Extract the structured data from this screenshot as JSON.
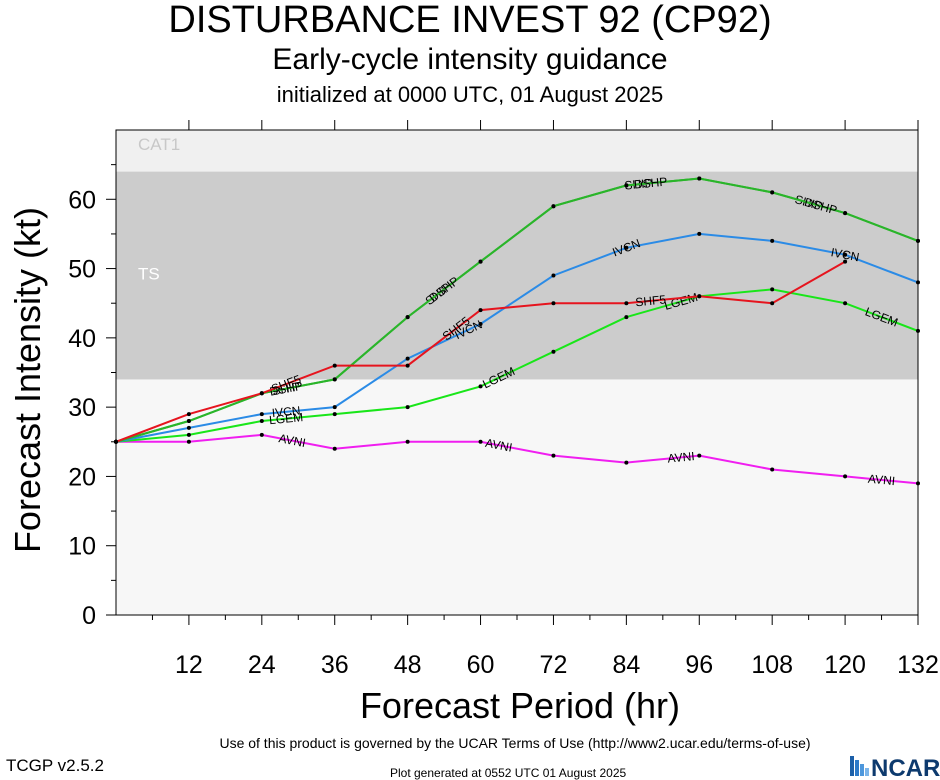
{
  "header": {
    "title": "DISTURBANCE INVEST 92 (CP92)",
    "subtitle": "Early-cycle intensity guidance",
    "init": "initialized at 0000 UTC, 01 August 2025"
  },
  "footer": {
    "terms": "Use of this product is governed by the UCAR Terms of Use (http://www2.ucar.edu/terms-of-use)",
    "version": "TCGP v2.5.2",
    "generated": "Plot generated at 0552 UTC   01 August 2025",
    "logo_text": "NCAR"
  },
  "chart_data": {
    "type": "line",
    "xlabel": "Forecast Period (hr)",
    "ylabel": "Forecast Intensity (kt)",
    "xlim": [
      0,
      132
    ],
    "ylim": [
      0,
      70
    ],
    "x_ticks": [
      12,
      24,
      36,
      48,
      60,
      72,
      84,
      96,
      108,
      120,
      132
    ],
    "y_ticks": [
      0,
      10,
      20,
      30,
      40,
      50,
      60
    ],
    "grid": false,
    "bands": [
      {
        "label": "TS",
        "from": 34,
        "to": 64,
        "color": "#cccccc"
      },
      {
        "label": "CAT1",
        "from": 64,
        "to": 70,
        "color": "#f0f0f0"
      }
    ],
    "background_color": "#f7f7f7",
    "series": [
      {
        "name": "SHF5",
        "color": "#e6141e",
        "label_x": [
          28,
          56,
          88
        ],
        "x": [
          0,
          12,
          24,
          36,
          48,
          60,
          72,
          84,
          96,
          108,
          120
        ],
        "y": [
          25,
          29,
          32,
          36,
          36,
          44,
          45,
          45,
          46,
          45,
          51
        ]
      },
      {
        "name": "DSHP",
        "color": "#2ab52a",
        "label_x": [
          28,
          54,
          88,
          116
        ],
        "x": [
          0,
          12,
          24,
          36,
          48,
          60,
          72,
          84,
          96,
          108,
          120,
          132
        ],
        "y": [
          25,
          28,
          32,
          34,
          43,
          51,
          59,
          62,
          63,
          61,
          58,
          54
        ]
      },
      {
        "name": "SHIP",
        "color": "#2ab52a",
        "label_x": [
          28,
          53,
          86,
          114
        ],
        "x": [
          0,
          12,
          24,
          36,
          48,
          60,
          72,
          84,
          96,
          108,
          120,
          132
        ],
        "y": [
          25,
          28,
          32,
          34,
          43,
          51,
          59,
          62,
          63,
          61,
          58,
          54
        ]
      },
      {
        "name": "IVCN",
        "color": "#2b8be6",
        "label_x": [
          28,
          58,
          84,
          120
        ],
        "x": [
          0,
          12,
          24,
          36,
          48,
          60,
          72,
          84,
          96,
          108,
          120,
          132
        ],
        "y": [
          25,
          27,
          29,
          30,
          37,
          42,
          49,
          53,
          55,
          54,
          52,
          48
        ]
      },
      {
        "name": "LGEM",
        "color": "#19e619",
        "label_x": [
          28,
          63,
          93,
          126
        ],
        "x": [
          0,
          12,
          24,
          36,
          48,
          60,
          72,
          84,
          96,
          108,
          120,
          132
        ],
        "y": [
          25,
          26,
          28,
          29,
          30,
          33,
          38,
          43,
          46,
          47,
          45,
          41
        ]
      },
      {
        "name": "AVNI",
        "color": "#f01ef0",
        "label_x": [
          29,
          63,
          93,
          126
        ],
        "x": [
          0,
          12,
          24,
          36,
          48,
          60,
          72,
          84,
          96,
          108,
          120,
          132
        ],
        "y": [
          25,
          25,
          26,
          24,
          25,
          25,
          23,
          22,
          23,
          21,
          20,
          19
        ]
      }
    ]
  }
}
